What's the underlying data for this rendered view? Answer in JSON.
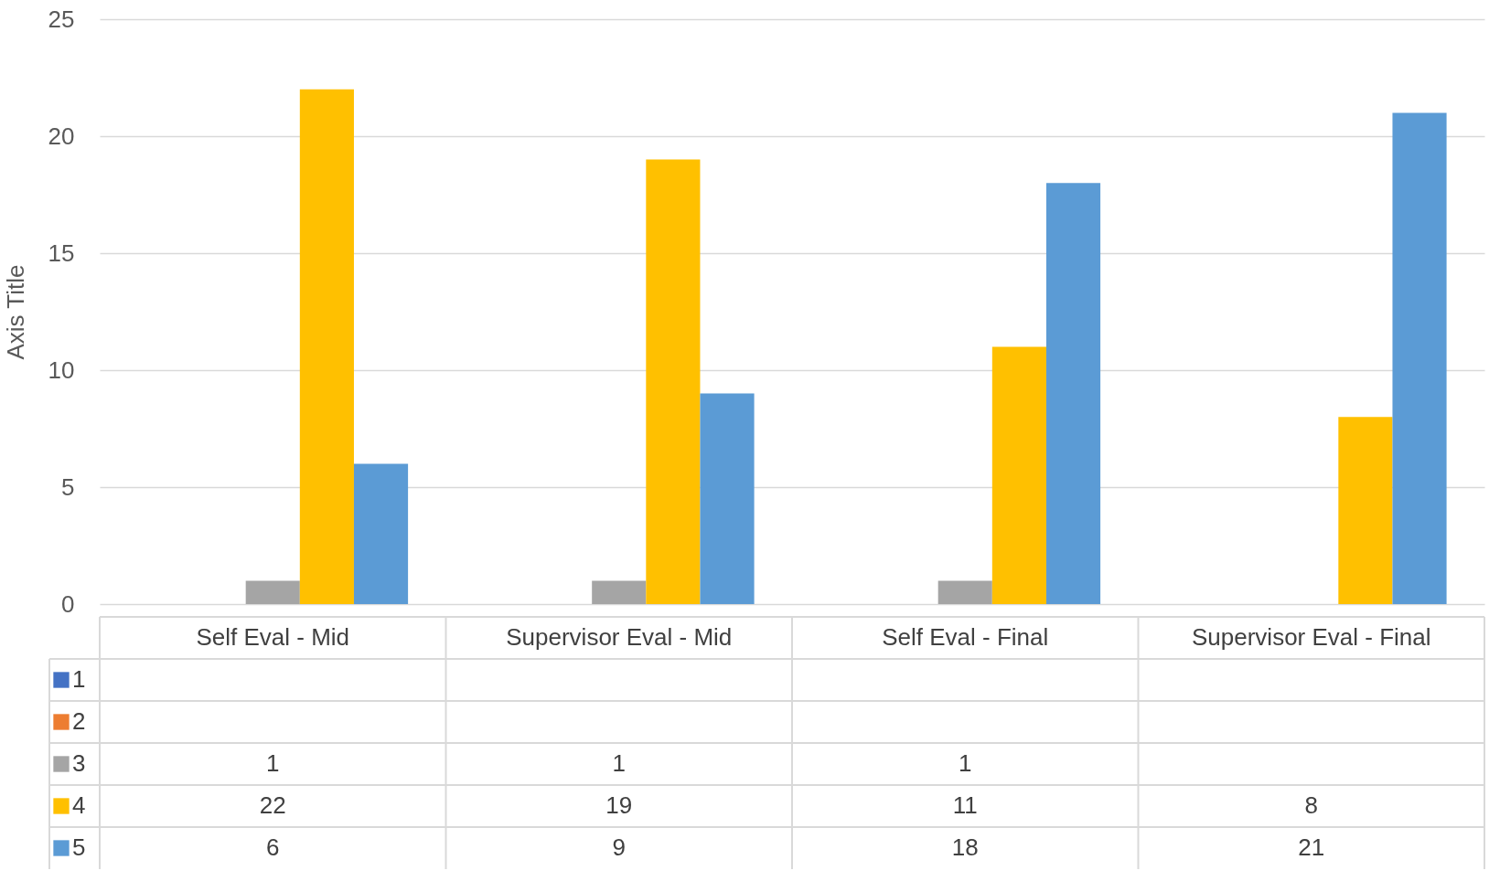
{
  "chart_data": {
    "type": "bar",
    "ylabel": "Axis Title",
    "categories": [
      "Self Eval - Mid",
      "Supervisor Eval - Mid",
      "Self Eval - Final",
      "Supervisor Eval - Final"
    ],
    "series": [
      {
        "name": "1",
        "color": "#4472c4",
        "values": [
          null,
          null,
          null,
          null
        ]
      },
      {
        "name": "2",
        "color": "#ed7d31",
        "values": [
          null,
          null,
          null,
          null
        ]
      },
      {
        "name": "3",
        "color": "#a5a5a5",
        "values": [
          1,
          1,
          1,
          null
        ]
      },
      {
        "name": "4",
        "color": "#ffc000",
        "values": [
          22,
          19,
          11,
          8
        ]
      },
      {
        "name": "5",
        "color": "#5b9bd5",
        "values": [
          6,
          9,
          18,
          21
        ]
      }
    ],
    "ylim": [
      0,
      25
    ],
    "yticks": [
      0,
      5,
      10,
      15,
      20,
      25
    ],
    "grid": "y",
    "legend": "bottom",
    "data_labels": true
  }
}
